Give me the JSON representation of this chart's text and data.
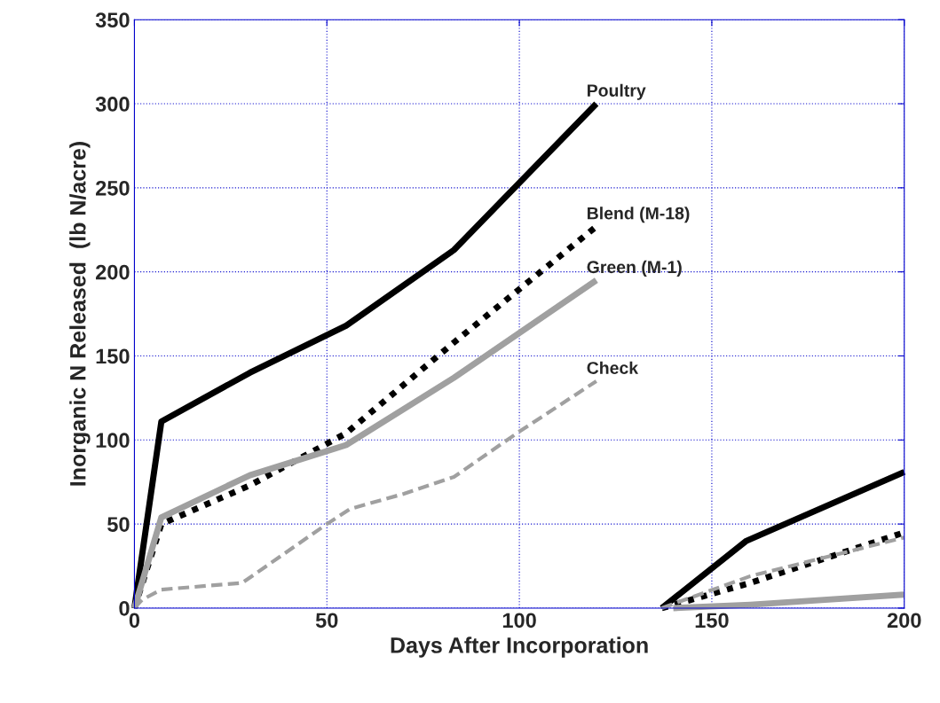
{
  "chart_data": {
    "type": "line",
    "xlabel": "Days After Incorporation",
    "ylabel": "Inorganic N Released  (lb N/acre)",
    "xlim": [
      0,
      200
    ],
    "ylim": [
      0,
      350
    ],
    "xticks": [
      0,
      50,
      100,
      150,
      200
    ],
    "yticks": [
      0,
      50,
      100,
      150,
      200,
      250,
      300,
      350
    ],
    "grid": true,
    "legend": false,
    "marker": "none",
    "series": [
      {
        "name": "Poultry",
        "color": "#000000",
        "line_style": "solid",
        "x": [
          0,
          7,
          30,
          55,
          83,
          120,
          130,
          137,
          159,
          200
        ],
        "values": [
          0,
          111,
          140,
          168,
          213,
          300,
          null,
          0,
          40,
          81
        ]
      },
      {
        "name": "Blend (M-18)",
        "color": "#000000",
        "line_style": "dotted",
        "x": [
          0,
          7,
          30,
          55,
          83,
          120,
          130,
          137,
          160,
          200
        ],
        "values": [
          0,
          50,
          73,
          104,
          158,
          227,
          null,
          0,
          15,
          45
        ]
      },
      {
        "name": "Green (M-1)",
        "color": "#a0a0a0",
        "line_style": "solid",
        "x": [
          0,
          7,
          30,
          55,
          83,
          120,
          130,
          140,
          160,
          200
        ],
        "values": [
          0,
          54,
          79,
          97,
          137,
          195,
          null,
          0,
          2,
          8
        ]
      },
      {
        "name": "Check",
        "color": "#a0a0a0",
        "line_style": "dashed",
        "x": [
          0,
          2,
          7,
          28,
          50,
          56,
          70,
          83,
          100,
          120,
          130,
          137,
          160,
          200
        ],
        "values": [
          0,
          5,
          11,
          15,
          50,
          59,
          68,
          78,
          105,
          135,
          null,
          0,
          19,
          42
        ]
      }
    ]
  }
}
